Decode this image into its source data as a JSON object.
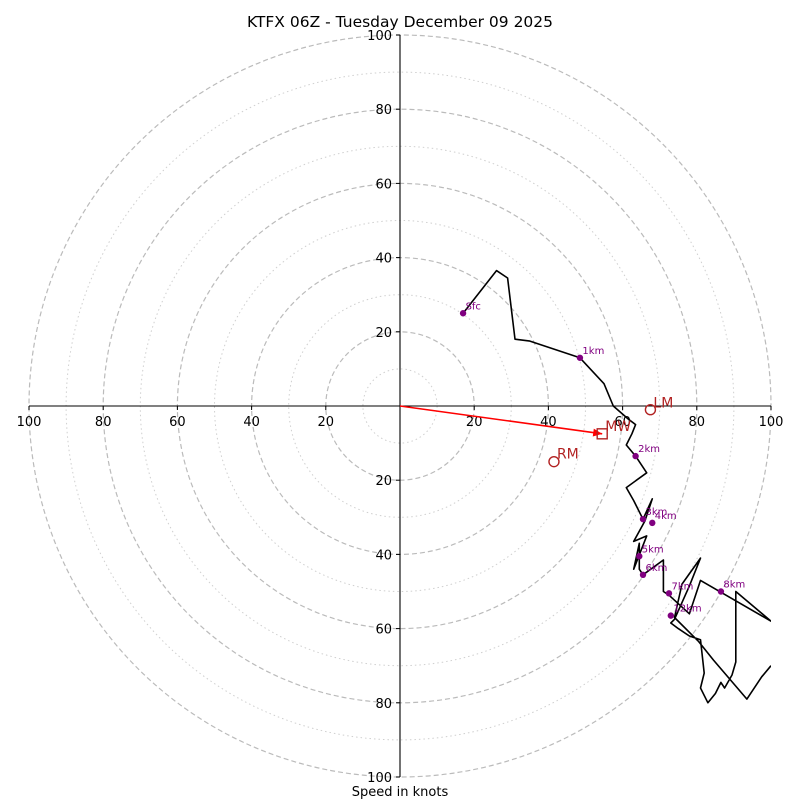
{
  "chart_data": {
    "type": "hodograph",
    "title": "KTFX 06Z - Tuesday December 09 2025",
    "xlabel": "Speed in knots",
    "ring_max": 100,
    "major_rings": [
      20,
      40,
      60,
      80,
      100
    ],
    "minor_rings": [
      10,
      30,
      50,
      70,
      90
    ],
    "ticks": {
      "x_left": [
        "100",
        "80",
        "60",
        "40",
        "20"
      ],
      "x_right": [
        "20",
        "40",
        "60",
        "80",
        "100"
      ],
      "y_top": [
        "20",
        "40",
        "60",
        "80",
        "100"
      ],
      "y_bottom": [
        "20",
        "40",
        "60",
        "80",
        "100"
      ]
    },
    "trace": [
      [
        17,
        25
      ],
      [
        26,
        36.5
      ],
      [
        29,
        34.5
      ],
      [
        31,
        18
      ],
      [
        35,
        17.5
      ],
      [
        48.5,
        13
      ],
      [
        55,
        6
      ],
      [
        57.5,
        0
      ],
      [
        61.5,
        -3.5
      ],
      [
        63.5,
        -5
      ],
      [
        62.5,
        -7.5
      ],
      [
        61,
        -10.5
      ],
      [
        63.5,
        -13.5
      ],
      [
        66.5,
        -18
      ],
      [
        61,
        -22
      ],
      [
        63,
        -25.5
      ],
      [
        65.5,
        -30.5
      ],
      [
        68,
        -25
      ],
      [
        66,
        -31
      ],
      [
        63,
        -36.5
      ],
      [
        66.5,
        -35
      ],
      [
        63,
        -44
      ],
      [
        64.5,
        -37
      ],
      [
        64.5,
        -44
      ],
      [
        65.5,
        -45.5
      ],
      [
        71,
        -41.5
      ],
      [
        71,
        -50
      ],
      [
        72.5,
        -51
      ],
      [
        78,
        -56
      ],
      [
        81,
        -47
      ],
      [
        100,
        -58
      ],
      [
        90.5,
        -50
      ],
      [
        90.5,
        -69
      ],
      [
        89.5,
        -72.5
      ],
      [
        87.5,
        -76
      ],
      [
        86.5,
        -74.5
      ],
      [
        85,
        -77.5
      ],
      [
        83,
        -80
      ],
      [
        81,
        -76
      ],
      [
        82,
        -72
      ],
      [
        81,
        -63
      ],
      [
        78,
        -62
      ],
      [
        75,
        -60
      ],
      [
        73,
        -58.5
      ],
      [
        74,
        -57.5
      ],
      [
        78,
        -48.5
      ],
      [
        81,
        -41
      ],
      [
        76,
        -48
      ],
      [
        74,
        -57
      ],
      [
        80.5,
        -63.5
      ],
      [
        84.5,
        -68.5
      ],
      [
        93.5,
        -79
      ],
      [
        97.5,
        -73
      ],
      [
        100,
        -70
      ]
    ],
    "height_points": [
      {
        "label": "Sfc",
        "u": 17,
        "v": 25
      },
      {
        "label": "1km",
        "u": 48.5,
        "v": 13
      },
      {
        "label": "2km",
        "u": 63.5,
        "v": -13.5
      },
      {
        "label": "3km",
        "u": 65.5,
        "v": -30.5
      },
      {
        "label": "4km",
        "u": 68,
        "v": -31.5
      },
      {
        "label": "5km",
        "u": 64.5,
        "v": -40.5
      },
      {
        "label": "6km",
        "u": 65.5,
        "v": -45.5
      },
      {
        "label": "7km",
        "u": 72.5,
        "v": -50.5
      },
      {
        "label": "8km",
        "u": 86.5,
        "v": -50
      },
      {
        "label": "12km",
        "u": 73,
        "v": -56.5
      }
    ],
    "markers": {
      "mean_wind": {
        "label": "MW",
        "u": 54.5,
        "v": -7.5
      },
      "left_mover": {
        "label": "LM",
        "u": 67.5,
        "v": -1
      },
      "right_mover": {
        "label": "RM",
        "u": 41.5,
        "v": -15
      }
    },
    "colors": {
      "trace": "#000000",
      "height_points": "#800080",
      "markers": "#b22222",
      "mean_wind_vector": "#ff0000",
      "rings": "#bbbbbb"
    }
  }
}
